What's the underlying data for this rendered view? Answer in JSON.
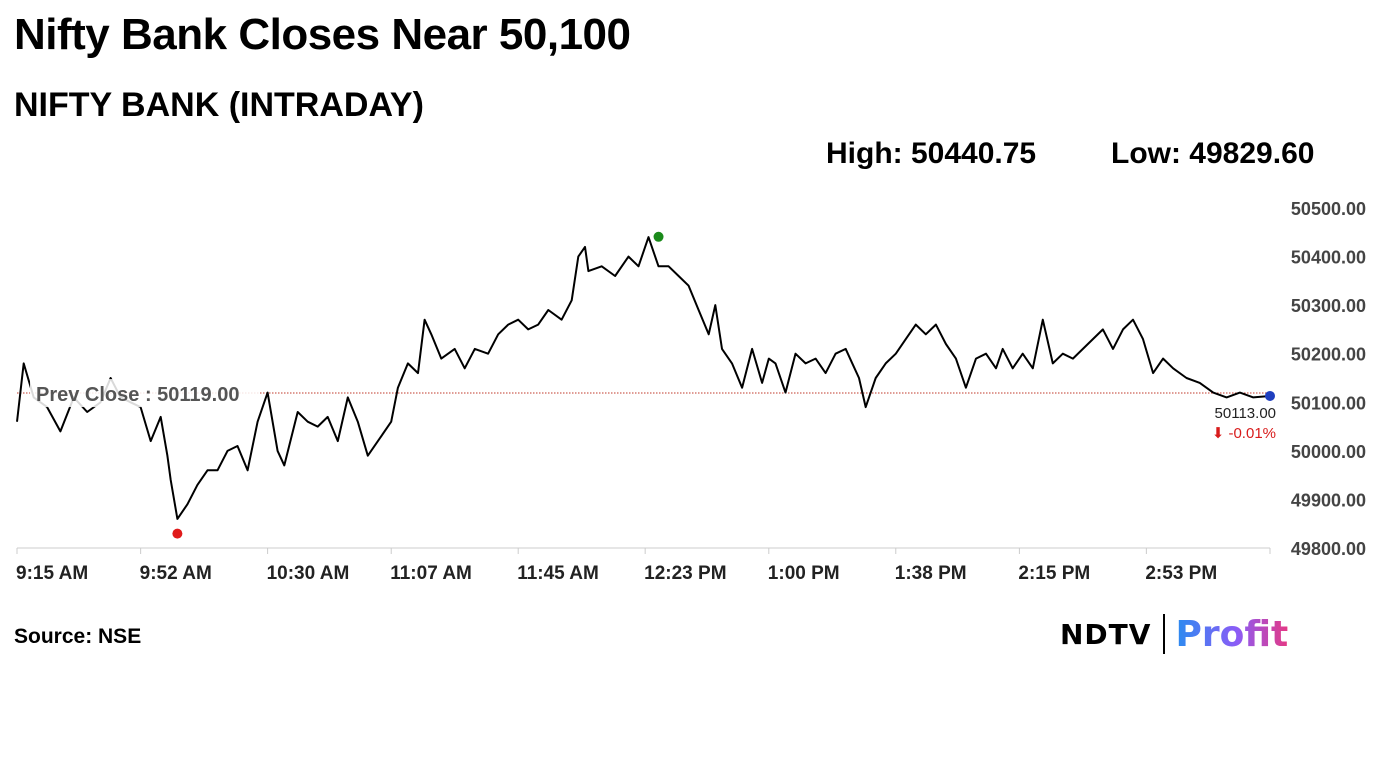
{
  "headline": "Nifty Bank Closes Near 50,100",
  "source": "Source: NSE",
  "logo": {
    "ndtv": "NDTV",
    "profit": "Profit"
  },
  "colors": {
    "line": "#000000",
    "prev_close_line": "#c0392b",
    "high_marker": "#1a8a1a",
    "low_marker": "#e01b1b",
    "last_marker": "#1f3fbf",
    "change_negative": "#d81b1b",
    "axis": "#cccccc"
  },
  "chart_data": {
    "type": "line",
    "title": "NIFTY BANK (INTRADAY)",
    "stats": {
      "high": "High: 50440.75",
      "low": "Low: 49829.60"
    },
    "prev_close": {
      "label": "Prev Close : 50119.00",
      "value": 50119.0
    },
    "last": {
      "value": 50113.0,
      "label": "50113.00",
      "change": "⬇ -0.01%"
    },
    "markers": {
      "high": {
        "time": "12:27 PM",
        "value": 50440.75
      },
      "low": {
        "time": "10:03 AM",
        "value": 49829.6
      },
      "last": {
        "time": "3:30 PM",
        "value": 50113.0
      }
    },
    "x_ticks": [
      "9:15 AM",
      "9:52 AM",
      "10:30 AM",
      "11:07 AM",
      "11:45 AM",
      "12:23 PM",
      "1:00 PM",
      "1:38 PM",
      "2:15 PM",
      "2:53 PM"
    ],
    "y_ticks": [
      "50500.00",
      "50400.00",
      "50300.00",
      "50200.00",
      "50100.00",
      "50000.00",
      "49900.00",
      "49800.00"
    ],
    "ylim": [
      49800,
      50500
    ],
    "xlim": [
      "9:15 AM",
      "3:30 PM"
    ],
    "grid": false,
    "legend": "none",
    "series": [
      {
        "x": [
          "9:15 AM",
          "9:17 AM",
          "9:20 AM",
          "9:24 AM",
          "9:28 AM",
          "9:32 AM",
          "9:36 AM",
          "9:40 AM",
          "9:43 AM",
          "9:46 AM",
          "9:49 AM",
          "9:52 AM",
          "9:55 AM",
          "9:58 AM",
          "10:00 AM",
          "10:01 AM",
          "10:03 AM",
          "10:06 AM",
          "10:09 AM",
          "10:12 AM",
          "10:15 AM",
          "10:18 AM",
          "10:21 AM",
          "10:24 AM",
          "10:27 AM",
          "10:30 AM",
          "10:33 AM",
          "10:35 AM",
          "10:39 AM",
          "10:42 AM",
          "10:45 AM",
          "10:48 AM",
          "10:51 AM",
          "10:54 AM",
          "10:57 AM",
          "11:00 AM",
          "11:03 AM",
          "11:07 AM",
          "11:09 AM",
          "11:12 AM",
          "11:15 AM",
          "11:17 AM",
          "11:19 AM",
          "11:22 AM",
          "11:26 AM",
          "11:29 AM",
          "11:32 AM",
          "11:36 AM",
          "11:39 AM",
          "11:42 AM",
          "11:45 AM",
          "11:48 AM",
          "11:51 AM",
          "11:54 AM",
          "11:58 AM",
          "12:01 PM",
          "12:03 PM",
          "12:05 PM",
          "12:06 PM",
          "12:10 PM",
          "12:14 PM",
          "12:18 PM",
          "12:21 PM",
          "12:24 PM",
          "12:27 PM",
          "12:30 PM",
          "12:33 PM",
          "12:36 PM",
          "12:39 PM",
          "12:42 PM",
          "12:44 PM",
          "12:46 PM",
          "12:49 PM",
          "12:52 PM",
          "12:55 PM",
          "12:58 PM",
          "1:00 PM",
          "1:02 PM",
          "1:05 PM",
          "1:08 PM",
          "1:11 PM",
          "1:14 PM",
          "1:17 PM",
          "1:20 PM",
          "1:23 PM",
          "1:25 PM",
          "1:27 PM",
          "1:29 PM",
          "1:32 PM",
          "1:35 PM",
          "1:38 PM",
          "1:41 PM",
          "1:44 PM",
          "1:47 PM",
          "1:50 PM",
          "1:53 PM",
          "1:56 PM",
          "1:59 PM",
          "2:02 PM",
          "2:05 PM",
          "2:08 PM",
          "2:10 PM",
          "2:13 PM",
          "2:16 PM",
          "2:19 PM",
          "2:22 PM",
          "2:25 PM",
          "2:28 PM",
          "2:31 PM",
          "2:34 PM",
          "2:37 PM",
          "2:40 PM",
          "2:43 PM",
          "2:46 PM",
          "2:49 PM",
          "2:52 PM",
          "2:55 PM",
          "2:58 PM",
          "3:01 PM",
          "3:05 PM",
          "3:09 PM",
          "3:13 PM",
          "3:17 PM",
          "3:21 PM",
          "3:25 PM",
          "3:30 PM"
        ],
        "values": [
          50060,
          50180,
          50110,
          50090,
          50040,
          50110,
          50080,
          50100,
          50150,
          50110,
          50100,
          50090,
          50020,
          50070,
          49990,
          49940,
          49860,
          49890,
          49930,
          49960,
          49960,
          50000,
          50010,
          49960,
          50060,
          50120,
          50000,
          49970,
          50080,
          50060,
          50050,
          50070,
          50020,
          50110,
          50060,
          49990,
          50020,
          50060,
          50130,
          50180,
          50160,
          50270,
          50240,
          50190,
          50210,
          50170,
          50210,
          50200,
          50240,
          50260,
          50270,
          50250,
          50260,
          50290,
          50270,
          50310,
          50400,
          50420,
          50370,
          50380,
          50360,
          50400,
          50380,
          50440,
          50380,
          50380,
          50360,
          50340,
          50290,
          50240,
          50300,
          50210,
          50180,
          50130,
          50210,
          50140,
          50190,
          50180,
          50120,
          50200,
          50180,
          50190,
          50160,
          50200,
          50210,
          50180,
          50150,
          50090,
          50150,
          50180,
          50200,
          50230,
          50260,
          50240,
          50260,
          50220,
          50190,
          50130,
          50190,
          50200,
          50170,
          50210,
          50170,
          50200,
          50170,
          50270,
          50180,
          50200,
          50190,
          50210,
          50230,
          50250,
          50210,
          50250,
          50270,
          50230,
          50160,
          50190,
          50170,
          50150,
          50140,
          50120,
          50110,
          50120,
          50110,
          50113
        ]
      }
    ]
  }
}
